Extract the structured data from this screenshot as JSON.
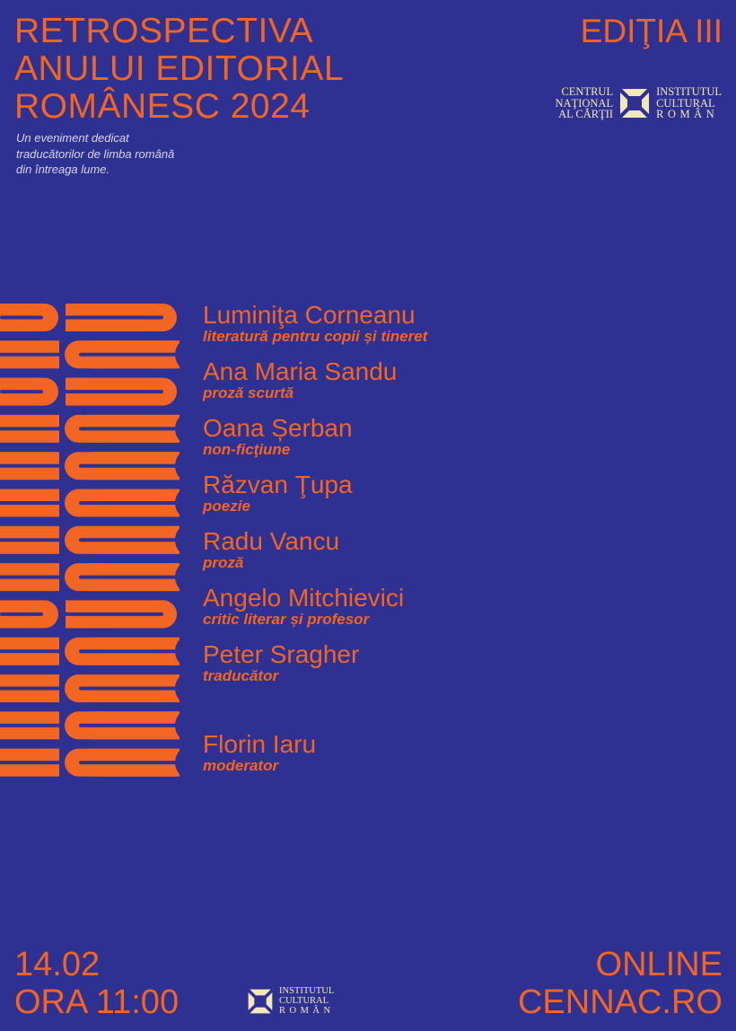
{
  "colors": {
    "background": "#2e3192",
    "accent": "#f26522",
    "logo": "#f1e7b8"
  },
  "header": {
    "title_lines": [
      "RETROSPECTIVA",
      "ANULUI EDITORIAL",
      "ROMÂNESC 2024"
    ],
    "subtitle_lines": [
      "Un eveniment dedicat",
      "traducătorilor de limba română",
      "din întreaga lume."
    ],
    "edition": "EDIŢIA III",
    "logos": {
      "cnc_lines": [
        "CENTRUL",
        "NAŢIONAL",
        "AL CĂRŢII"
      ],
      "icr_lines": [
        "INSTITUTUL",
        "CULTURAL",
        "ROMÂN"
      ]
    }
  },
  "speakers": [
    {
      "name": "Luminiţa Corneanu",
      "role": "literatură pentru copii și tineret"
    },
    {
      "name": "Ana Maria Sandu",
      "role": "proză scurtă"
    },
    {
      "name": "Oana Șerban",
      "role": "non-ficţiune"
    },
    {
      "name": "Răzvan Ţupa",
      "role": "poezie"
    },
    {
      "name": "Radu Vancu",
      "role": "proză"
    },
    {
      "name": "Angelo Mitchievici",
      "role": "critic literar și profesor"
    },
    {
      "name": "Peter Sragher",
      "role": "traducător"
    }
  ],
  "moderator": {
    "name": "Florin Iaru",
    "role": "moderator"
  },
  "footer": {
    "date": "14.02",
    "time": "ORA 11:00",
    "mode": "ONLINE",
    "website": "CENNAC.RO",
    "logo_lines": [
      "INSTITUTUL",
      "CULTURAL",
      "ROMÂN"
    ]
  }
}
